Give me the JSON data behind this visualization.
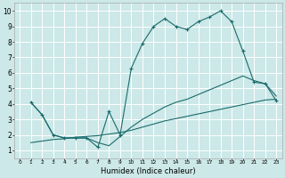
{
  "xlabel": "Humidex (Indice chaleur)",
  "xlim": [
    -0.5,
    23.5
  ],
  "ylim": [
    0.5,
    10.5
  ],
  "xticks": [
    0,
    1,
    2,
    3,
    4,
    5,
    6,
    7,
    8,
    9,
    10,
    11,
    12,
    13,
    14,
    15,
    16,
    17,
    18,
    19,
    20,
    21,
    22,
    23
  ],
  "yticks": [
    1,
    2,
    3,
    4,
    5,
    6,
    7,
    8,
    9,
    10
  ],
  "bg_color": "#cce8e8",
  "grid_color": "#ffffff",
  "line_color": "#1a6b6b",
  "line1_x": [
    1,
    2,
    3,
    4,
    5,
    6,
    7,
    8,
    9,
    10,
    11,
    12,
    13,
    14,
    15,
    16,
    17,
    18,
    19,
    20,
    21,
    22,
    23
  ],
  "line1_y": [
    4.1,
    3.3,
    2.0,
    1.8,
    1.8,
    1.8,
    1.2,
    3.5,
    2.0,
    6.3,
    7.9,
    9.0,
    9.5,
    9.0,
    8.8,
    9.3,
    9.6,
    10.0,
    9.3,
    7.4,
    5.4,
    5.3,
    4.2
  ],
  "line2_x": [
    1,
    2,
    3,
    4,
    5,
    6,
    7,
    8,
    9,
    10,
    11,
    12,
    13,
    14,
    15,
    16,
    17,
    18,
    19,
    20,
    21,
    22,
    23
  ],
  "line2_y": [
    1.5,
    1.6,
    1.7,
    1.75,
    1.85,
    1.9,
    1.95,
    2.05,
    2.15,
    2.3,
    2.5,
    2.7,
    2.9,
    3.05,
    3.2,
    3.35,
    3.5,
    3.65,
    3.8,
    3.95,
    4.1,
    4.25,
    4.3
  ],
  "line3_x": [
    1,
    2,
    3,
    4,
    5,
    6,
    7,
    8,
    9,
    10,
    11,
    12,
    13,
    14,
    15,
    16,
    17,
    18,
    19,
    20,
    21,
    22,
    23
  ],
  "line3_y": [
    4.1,
    3.3,
    2.0,
    1.8,
    1.8,
    1.8,
    1.5,
    1.3,
    1.9,
    2.5,
    3.0,
    3.4,
    3.8,
    4.1,
    4.3,
    4.6,
    4.9,
    5.2,
    5.5,
    5.8,
    5.5,
    5.3,
    4.5
  ]
}
